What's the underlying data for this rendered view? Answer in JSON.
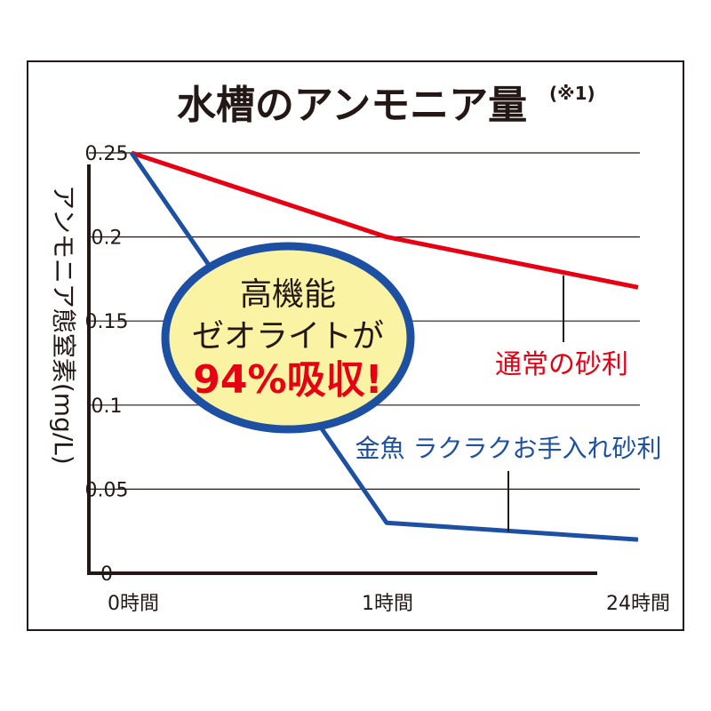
{
  "chart_data": {
    "type": "line",
    "title": "水槽のアンモニア量",
    "title_note": "(※1)",
    "ylabel": "アンモニア態窒素(mg/L)",
    "xlabel": "",
    "categories": [
      "0時間",
      "1時間",
      "24時間"
    ],
    "y_ticks": [
      "0",
      "0.05",
      "0.1",
      "0.15",
      "0.2",
      "0.25"
    ],
    "ylim": [
      0,
      0.25
    ],
    "grid": true,
    "series": [
      {
        "name": "通常の砂利",
        "values": [
          0.25,
          0.2,
          0.17
        ],
        "color": "#e60012"
      },
      {
        "name": "金魚 ラクラクお手入れ砂利",
        "values": [
          0.25,
          0.03,
          0.02
        ],
        "color": "#1d50a2"
      }
    ],
    "callout": {
      "line1": "高機能",
      "line2": "ゼオライトが",
      "line3": "94%吸収!",
      "fill": "#fbf3a4",
      "border": "#1d50a2",
      "emph_color": "#e60012"
    }
  }
}
